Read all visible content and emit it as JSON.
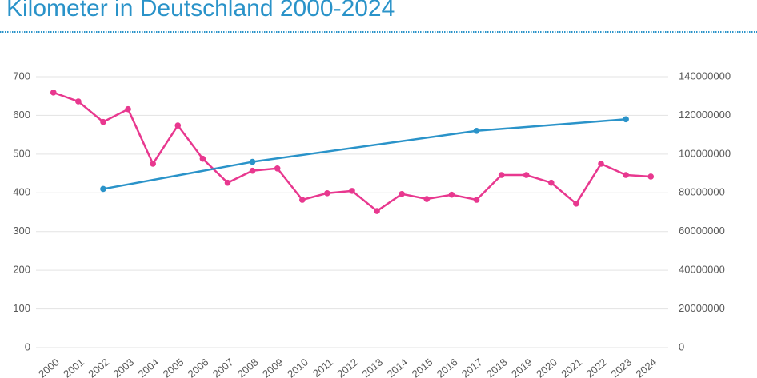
{
  "chart_data": {
    "type": "line",
    "title": "Kilometer in Deutschland 2000-2024",
    "x": [
      2000,
      2001,
      2002,
      2003,
      2004,
      2005,
      2006,
      2007,
      2008,
      2009,
      2010,
      2011,
      2012,
      2013,
      2014,
      2015,
      2016,
      2017,
      2018,
      2019,
      2020,
      2021,
      2022,
      2023,
      2024
    ],
    "xlim": [
      1999.3,
      2024.7
    ],
    "xticks": [
      2000,
      2001,
      2002,
      2003,
      2004,
      2005,
      2006,
      2007,
      2008,
      2009,
      2010,
      2011,
      2012,
      2013,
      2014,
      2015,
      2016,
      2017,
      2018,
      2019,
      2020,
      2021,
      2022,
      2023,
      2024
    ],
    "ylim": [
      0,
      700
    ],
    "yticks": [
      0,
      100,
      200,
      300,
      400,
      500,
      600,
      700
    ],
    "y2lim": [
      0,
      140000000
    ],
    "y2ticks": [
      0,
      20000000,
      40000000,
      60000000,
      80000000,
      100000000,
      120000000,
      140000000
    ],
    "grid": true,
    "series": [
      {
        "color": "#e8388f",
        "values": [
          659,
          636,
          583,
          616,
          475,
          574,
          488,
          426,
          457,
          463,
          382,
          399,
          405,
          353,
          397,
          384,
          395,
          382,
          446,
          446,
          426,
          372,
          475,
          446,
          442
        ]
      },
      {
        "color": "#2a93c9",
        "axis": "y2",
        "x": [
          2002,
          2008,
          2017,
          2023
        ],
        "values": [
          82000000,
          96000000,
          112000000,
          118000000
        ]
      }
    ]
  }
}
